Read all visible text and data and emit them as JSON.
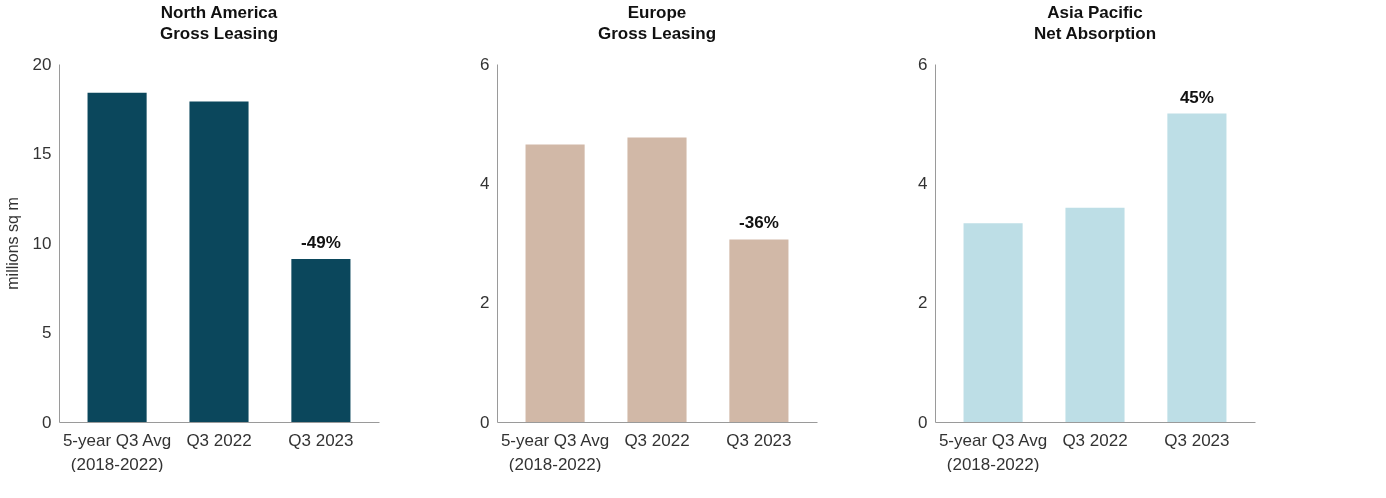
{
  "chart_data": [
    {
      "type": "bar",
      "title": "North America\nGross Leasing",
      "ylabel": "millions sq m",
      "categories": [
        "5-year Q3 Avg\n(2018-2022)",
        "Q3 2022",
        "Q3 2023"
      ],
      "values": [
        18.4,
        17.9,
        9.1
      ],
      "color": "#0b475c",
      "annotations": [
        {
          "text": "-49%",
          "x": "Q3 2023",
          "y": 9.1
        }
      ],
      "ylim": [
        0,
        20
      ],
      "yticks": [
        0,
        5,
        10,
        15,
        20
      ]
    },
    {
      "type": "bar",
      "title": "Europe\nGross Leasing",
      "categories": [
        "5-year Q3 Avg\n(2018-2022)",
        "Q3 2022",
        "Q3 2023"
      ],
      "values": [
        4.65,
        4.77,
        3.06
      ],
      "color": "#d1b8a7",
      "annotations": [
        {
          "text": "-36%",
          "x": "Q3 2023",
          "y": 3.06
        }
      ],
      "ylim": [
        0,
        6
      ],
      "yticks": [
        0,
        2,
        4,
        6
      ]
    },
    {
      "type": "bar",
      "title": "Asia Pacific\nNet Absorption",
      "categories": [
        "5-year Q3 Avg\n(2018-2022)",
        "Q3 2022",
        "Q3 2023"
      ],
      "values": [
        3.33,
        3.59,
        5.17
      ],
      "color": "#bddee6",
      "annotations": [
        {
          "text": "45%",
          "x": "Q3 2023",
          "y": 5.17
        }
      ],
      "ylim": [
        0,
        6
      ],
      "yticks": [
        0,
        2,
        4,
        6
      ]
    }
  ]
}
